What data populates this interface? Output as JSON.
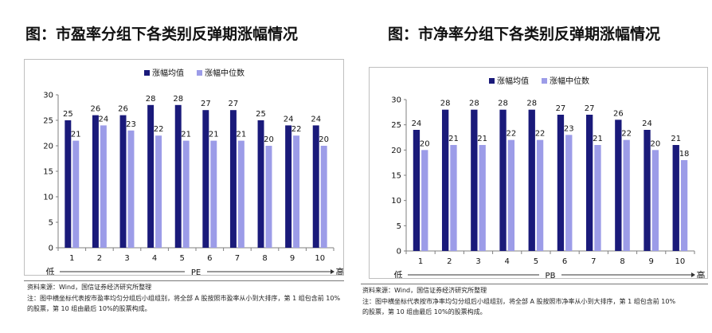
{
  "colors": {
    "mean": "#1a1a7a",
    "median": "#9c9ce8",
    "axis": "#7f7f7f"
  },
  "charts": [
    {
      "title": "图：市盈率分组下各类别反弹期涨幅情况",
      "legend": [
        "涨幅均值",
        "涨幅中位数"
      ],
      "xaxis_name": "PE",
      "low_label": "低",
      "high_label": "高",
      "source": "资料来源：Wind，国信证券经济研究所整理",
      "note_line1": "注：图中横坐标代表按市盈率均匀分组后小组组别，将全部 A 股按照市盈率从小到大排序，第 1 组包含前 10%",
      "note_line2": "的股票，第 10 组由最后 10%的股票构成。"
    },
    {
      "title": "图：市净率分组下各类别反弹期涨幅情况",
      "legend": [
        "涨幅均值",
        "涨幅中位数"
      ],
      "xaxis_name": "PB",
      "low_label": "低",
      "high_label": "高",
      "source": "资料来源：Wind，国信证券经济研究所整理",
      "note_line1": "注：图中横坐标代表按市净率均匀分组后小组组别，将全部 A 股按照市净率从小到大排序，第 1 组包含前 10%",
      "note_line2": "的股票，第 10 组由最后 10%的股票构成。"
    }
  ],
  "chart_data": [
    {
      "type": "bar",
      "title": "图：市盈率分组下各类别反弹期涨幅情况",
      "categories": [
        "1",
        "2",
        "3",
        "4",
        "5",
        "6",
        "7",
        "8",
        "9",
        "10"
      ],
      "series": [
        {
          "name": "涨幅均值",
          "values": [
            25,
            26,
            26,
            28,
            28,
            27,
            27,
            25,
            24,
            24
          ]
        },
        {
          "name": "涨幅中位数",
          "values": [
            21,
            24,
            23,
            22,
            21,
            21,
            21,
            20,
            22,
            20
          ]
        }
      ],
      "xlabel": "PE",
      "ylim": [
        0,
        30
      ],
      "yticks": [
        0,
        5,
        10,
        15,
        20,
        25,
        30
      ],
      "grid": false,
      "legend": "top"
    },
    {
      "type": "bar",
      "title": "图：市净率分组下各类别反弹期涨幅情况",
      "categories": [
        "1",
        "2",
        "3",
        "4",
        "5",
        "6",
        "7",
        "8",
        "9",
        "10"
      ],
      "series": [
        {
          "name": "涨幅均值",
          "values": [
            24,
            28,
            28,
            28,
            28,
            27,
            27,
            26,
            24,
            21
          ]
        },
        {
          "name": "涨幅中位数",
          "values": [
            20,
            21,
            21,
            22,
            22,
            23,
            21,
            22,
            20,
            18
          ]
        }
      ],
      "xlabel": "PB",
      "ylim": [
        0,
        30
      ],
      "yticks": [
        0,
        5,
        10,
        15,
        20,
        25,
        30
      ],
      "grid": false,
      "legend": "top"
    }
  ]
}
